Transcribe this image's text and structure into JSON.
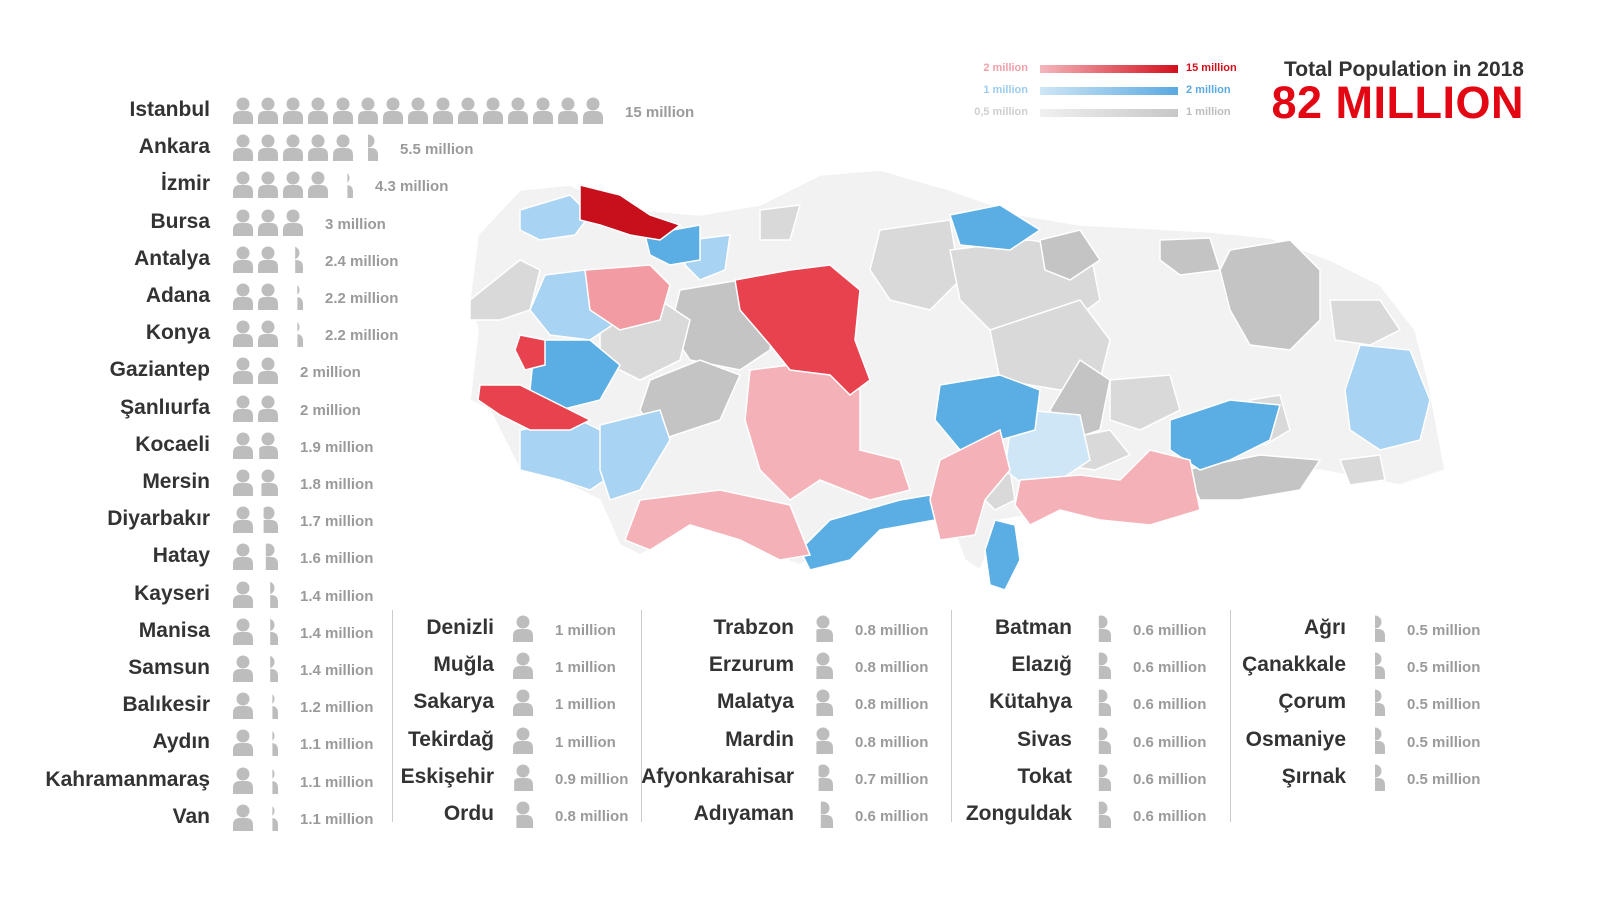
{
  "header": {
    "title": "Total Population in 2018",
    "total": "82 MILLION"
  },
  "legend": [
    {
      "min": "2 million",
      "max": "15 million",
      "color_from": "#f3b7bd",
      "color_to": "#d40f1c",
      "label_color": "#f2a0a8",
      "max_color": "#d40f1c"
    },
    {
      "min": "1 million",
      "max": "2 million",
      "color_from": "#cfe6f6",
      "color_to": "#5aa9e0",
      "label_color": "#9ccdef",
      "max_color": "#5aa9e0"
    },
    {
      "min": "0,5 million",
      "max": "1 million",
      "color_from": "#f0f0f0",
      "color_to": "#c7c7c7",
      "label_color": "#cfcfcf",
      "max_color": "#bdbdbd"
    }
  ],
  "colors": {
    "person_icon": "#bdbdbd",
    "map_light": "#f2f2f2",
    "map_gray": "#d9d9d9",
    "map_dark_gray": "#c4c4c4",
    "map_light_blue": "#a9d3f2",
    "map_blue": "#5aaee3",
    "map_pink": "#f4b2b8",
    "map_red": "#e8424f",
    "map_dark_red": "#c8101c"
  },
  "provinces": [
    {
      "name": "Istanbul",
      "value_label": "15 million",
      "value": 15
    },
    {
      "name": "Ankara",
      "value_label": "5.5 million",
      "value": 5.5
    },
    {
      "name": "İzmir",
      "value_label": "4.3 million",
      "value": 4.3
    },
    {
      "name": "Bursa",
      "value_label": "3 million",
      "value": 3
    },
    {
      "name": "Antalya",
      "value_label": "2.4 million",
      "value": 2.4
    },
    {
      "name": "Adana",
      "value_label": "2.2 million",
      "value": 2.2
    },
    {
      "name": "Konya",
      "value_label": "2.2 million",
      "value": 2.2
    },
    {
      "name": "Gaziantep",
      "value_label": "2 million",
      "value": 2
    },
    {
      "name": "Şanlıurfa",
      "value_label": "2 million",
      "value": 2
    },
    {
      "name": "Kocaeli",
      "value_label": "1.9 million",
      "value": 1.9
    },
    {
      "name": "Mersin",
      "value_label": "1.8 million",
      "value": 1.8
    },
    {
      "name": "Diyarbakır",
      "value_label": "1.7 million",
      "value": 1.7
    },
    {
      "name": "Hatay",
      "value_label": "1.6 million",
      "value": 1.6
    },
    {
      "name": "Kayseri",
      "value_label": "1.4 million",
      "value": 1.4
    },
    {
      "name": "Manisa",
      "value_label": "1.4 million",
      "value": 1.4
    },
    {
      "name": "Samsun",
      "value_label": "1.4 million",
      "value": 1.4
    },
    {
      "name": "Balıkesir",
      "value_label": "1.2 million",
      "value": 1.2
    },
    {
      "name": "Aydın",
      "value_label": "1.1 million",
      "value": 1.1
    },
    {
      "name": "Kahramanmaraş",
      "value_label": "1.1 million",
      "value": 1.1
    },
    {
      "name": "Van",
      "value_label": "1.1 million",
      "value": 1.1
    },
    {
      "name": "Denizli",
      "value_label": "1 million",
      "value": 1
    },
    {
      "name": "Muğla",
      "value_label": "1 million",
      "value": 1
    },
    {
      "name": "Sakarya",
      "value_label": "1 million",
      "value": 1
    },
    {
      "name": "Tekirdağ",
      "value_label": "1 million",
      "value": 1
    },
    {
      "name": "Eskişehir",
      "value_label": "0.9 million",
      "value": 0.9
    },
    {
      "name": "Ordu",
      "value_label": "0.8 million",
      "value": 0.8
    },
    {
      "name": "Trabzon",
      "value_label": "0.8 million",
      "value": 0.8
    },
    {
      "name": "Erzurum",
      "value_label": "0.8 million",
      "value": 0.8
    },
    {
      "name": "Malatya",
      "value_label": "0.8 million",
      "value": 0.8
    },
    {
      "name": "Mardin",
      "value_label": "0.8 million",
      "value": 0.8
    },
    {
      "name": "Afyonkarahisar",
      "value_label": "0.7 million",
      "value": 0.7
    },
    {
      "name": "Adıyaman",
      "value_label": "0.6 million",
      "value": 0.6
    },
    {
      "name": "Batman",
      "value_label": "0.6 million",
      "value": 0.6
    },
    {
      "name": "Elazığ",
      "value_label": "0.6 million",
      "value": 0.6
    },
    {
      "name": "Kütahya",
      "value_label": "0.6 million",
      "value": 0.6
    },
    {
      "name": "Sivas",
      "value_label": "0.6 million",
      "value": 0.6
    },
    {
      "name": "Tokat",
      "value_label": "0.6 million",
      "value": 0.6
    },
    {
      "name": "Zonguldak",
      "value_label": "0.6 million",
      "value": 0.6
    },
    {
      "name": "Ağrı",
      "value_label": "0.5 million",
      "value": 0.5
    },
    {
      "name": "Çanakkale",
      "value_label": "0.5 million",
      "value": 0.5
    },
    {
      "name": "Çorum",
      "value_label": "0.5 million",
      "value": 0.5
    },
    {
      "name": "Osmaniye",
      "value_label": "0.5 million",
      "value": 0.5
    },
    {
      "name": "Şırnak",
      "value_label": "0.5 million",
      "value": 0.5
    }
  ]
}
